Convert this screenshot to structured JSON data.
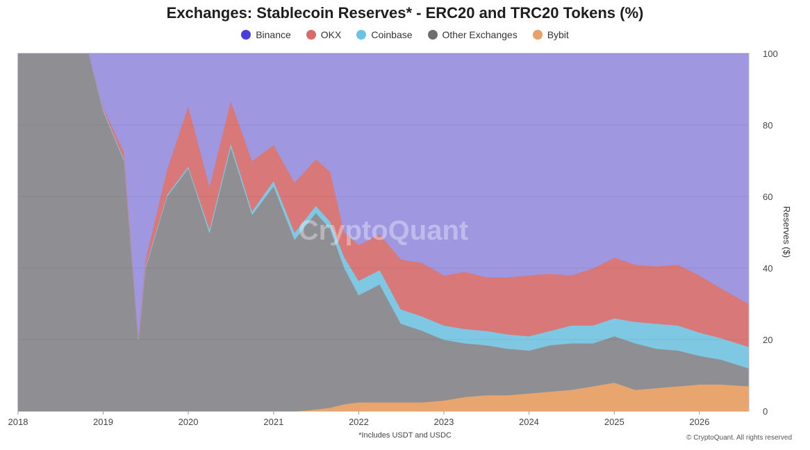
{
  "chart_data": {
    "type": "area",
    "stacked": true,
    "title": "Exchanges: Stablecoin Reserves* - ERC20 and TRC20 Tokens (%)",
    "ylabel": "Reserves ($)",
    "ylim": [
      0,
      100
    ],
    "yticks": [
      "0",
      "20",
      "40",
      "60",
      "80",
      "100"
    ],
    "xticks": [
      "2018",
      "2019",
      "2020",
      "2021",
      "2022",
      "2023",
      "2024",
      "2025",
      "2026"
    ],
    "xlim": [
      "2018-01-01",
      "2026-08-01"
    ],
    "footnote": "*Includes USDT and USDC",
    "copyright": "© CryptoQuant. All rights reserved",
    "watermark": "CryptoQuant",
    "legend_position": "top-center",
    "x": [
      "2018-01",
      "2018-07",
      "2018-11",
      "2019-01",
      "2019-04",
      "2019-06",
      "2019-07",
      "2019-10",
      "2020-01",
      "2020-04",
      "2020-07",
      "2020-10",
      "2021-01",
      "2021-04",
      "2021-07",
      "2021-09",
      "2021-11",
      "2022-01",
      "2022-04",
      "2022-07",
      "2022-10",
      "2023-01",
      "2023-04",
      "2023-07",
      "2023-10",
      "2024-01",
      "2024-04",
      "2024-07",
      "2024-10",
      "2025-01",
      "2025-04",
      "2025-07",
      "2025-10",
      "2026-01",
      "2026-04",
      "2026-08"
    ],
    "series": [
      {
        "name": "Bybit",
        "color": "#e8a66e",
        "values": [
          0,
          0,
          0,
          0,
          0,
          0,
          0,
          0,
          0,
          0,
          0,
          0,
          0,
          0,
          0.5,
          1,
          2,
          2.5,
          2.5,
          2.5,
          2.5,
          3,
          4,
          4.5,
          4.5,
          5,
          5.5,
          6,
          7,
          8,
          6,
          6.5,
          7,
          7.5,
          7.5,
          7
        ]
      },
      {
        "name": "Other Exchanges",
        "color": "#8f8f93",
        "values": [
          100,
          100,
          100,
          84,
          70,
          20,
          40,
          60,
          68,
          50,
          74,
          55,
          63,
          48,
          55,
          50,
          38,
          30,
          33,
          22,
          20,
          17,
          15,
          14,
          13,
          12,
          13,
          13,
          12,
          13,
          13,
          11,
          10,
          8,
          7,
          5
        ]
      },
      {
        "name": "Coinbase",
        "color": "#7ec8e3",
        "values": [
          0,
          0,
          0,
          0.5,
          0.5,
          0.5,
          0.5,
          0.5,
          0.5,
          1,
          1,
          1,
          1.5,
          2,
          2,
          2,
          3,
          4,
          4,
          4,
          4,
          4,
          4,
          4,
          4,
          4,
          4,
          5,
          5,
          5,
          6,
          7,
          7,
          6.5,
          6,
          6
        ]
      },
      {
        "name": "OKX",
        "color": "#d97878",
        "values": [
          0,
          0,
          0,
          0.5,
          2,
          1,
          2,
          7,
          17,
          12,
          12,
          14,
          10,
          14,
          13,
          14,
          7,
          10,
          10,
          14,
          15,
          14,
          16,
          15,
          16,
          17,
          16,
          14,
          16,
          17,
          16,
          16,
          17,
          16,
          14,
          12
        ]
      },
      {
        "name": "Binance",
        "color": "#9f97e0",
        "values": [
          0,
          0,
          0,
          15,
          27.5,
          78.5,
          57.5,
          32.5,
          14.5,
          37,
          13,
          30,
          25.5,
          36,
          29.5,
          33,
          50,
          53.5,
          50.5,
          57.5,
          58.5,
          62,
          61,
          62.5,
          62.5,
          62,
          61.5,
          62,
          60,
          57,
          59,
          59.5,
          59,
          62,
          65.5,
          70
        ]
      }
    ]
  },
  "legend": [
    {
      "name": "Binance",
      "color": "#4a3fdc"
    },
    {
      "name": "OKX",
      "color": "#d96a6a"
    },
    {
      "name": "Coinbase",
      "color": "#6cc3e6"
    },
    {
      "name": "Other Exchanges",
      "color": "#6e6e72"
    },
    {
      "name": "Bybit",
      "color": "#e8a066"
    }
  ]
}
